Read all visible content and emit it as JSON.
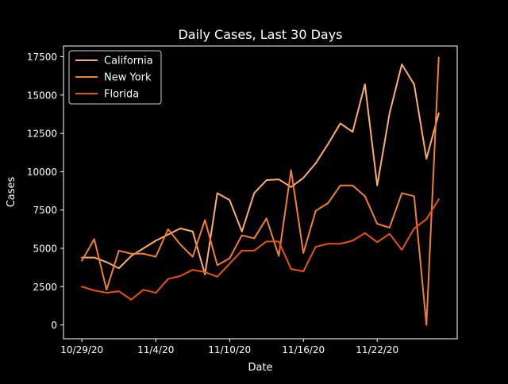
{
  "chart_data": {
    "type": "line",
    "title": "Daily Cases, Last 30 Days",
    "xlabel": "Date",
    "ylabel": "Cases",
    "x_tick_labels": [
      "10/29/20",
      "11/4/20",
      "11/10/20",
      "11/16/20",
      "11/22/20"
    ],
    "x_tick_days": [
      0,
      6,
      12,
      18,
      24
    ],
    "x_days": [
      0,
      1,
      2,
      3,
      4,
      5,
      6,
      7,
      8,
      9,
      10,
      11,
      12,
      13,
      14,
      15,
      16,
      17,
      18,
      19,
      20,
      21,
      22,
      23,
      24,
      25,
      26,
      27,
      28,
      29
    ],
    "x_dates": [
      "10/29/20",
      "10/30/20",
      "10/31/20",
      "11/1/20",
      "11/2/20",
      "11/3/20",
      "11/4/20",
      "11/5/20",
      "11/6/20",
      "11/7/20",
      "11/8/20",
      "11/9/20",
      "11/10/20",
      "11/11/20",
      "11/12/20",
      "11/13/20",
      "11/14/20",
      "11/15/20",
      "11/16/20",
      "11/17/20",
      "11/18/20",
      "11/19/20",
      "11/20/20",
      "11/21/20",
      "11/22/20",
      "11/23/20",
      "11/24/20",
      "11/25/20",
      "11/26/20",
      "11/27/20"
    ],
    "xlim": [
      -1.5,
      30.5
    ],
    "ylim": [
      -900,
      18200
    ],
    "y_ticks": [
      0,
      2500,
      5000,
      7500,
      10000,
      12500,
      15000,
      17500
    ],
    "legend_position": "top-left",
    "grid": false,
    "series": [
      {
        "name": "California",
        "color": "#fdae6b",
        "values": [
          4400,
          4400,
          4100,
          3700,
          4500,
          5000,
          5500,
          5900,
          6300,
          6100,
          3300,
          8600,
          8150,
          6100,
          8600,
          9450,
          9500,
          9000,
          9600,
          10550,
          11800,
          13150,
          12600,
          15700,
          9100,
          13800,
          17000,
          15700,
          10850,
          13800
        ]
      },
      {
        "name": "New York",
        "color": "#f07f30",
        "values": [
          4200,
          5600,
          2300,
          4850,
          4650,
          4650,
          4450,
          6250,
          5250,
          4450,
          6850,
          3900,
          4350,
          5850,
          5650,
          6950,
          4500,
          10100,
          4700,
          7450,
          7950,
          9100,
          9100,
          8400,
          6600,
          6350,
          8600,
          8400,
          0,
          17450
        ]
      },
      {
        "name": "Florida",
        "color": "#e6550d",
        "values": [
          2500,
          2250,
          2100,
          2200,
          1650,
          2300,
          2100,
          3000,
          3200,
          3600,
          3450,
          3150,
          4000,
          4850,
          4850,
          5450,
          5450,
          3650,
          3500,
          5100,
          5300,
          5300,
          5500,
          6000,
          5400,
          5950,
          4900,
          6300,
          6900,
          8200
        ]
      }
    ]
  }
}
